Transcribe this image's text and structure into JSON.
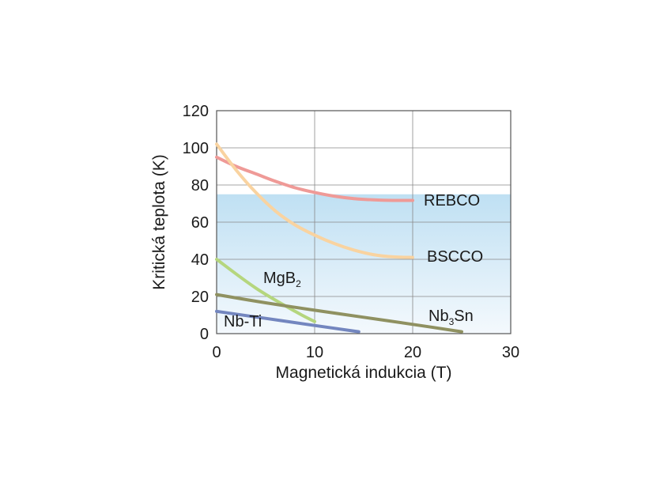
{
  "chart_data": {
    "type": "line",
    "xlabel": "Magnetická indukcia (T)",
    "ylabel": "Kritická teplota (K)",
    "xlim": [
      0,
      30
    ],
    "ylim": [
      0,
      120
    ],
    "x_ticks": [
      "0",
      "10",
      "20",
      "30"
    ],
    "y_ticks": [
      "0",
      "20",
      "40",
      "60",
      "80",
      "100",
      "120"
    ],
    "grid": true,
    "shaded_band": {
      "y_from": 0,
      "y_to": 75,
      "color": "#bfe0f3"
    },
    "series": [
      {
        "name": "REBCO",
        "label_main": "REBCO",
        "label_sub": "",
        "label_tail": "",
        "color": "#ef9a97",
        "points": [
          [
            0,
            95
          ],
          [
            2,
            90
          ],
          [
            4,
            86
          ],
          [
            6,
            82
          ],
          [
            8,
            78.5
          ],
          [
            10,
            76
          ],
          [
            12,
            74
          ],
          [
            14,
            72.7
          ],
          [
            16,
            72
          ],
          [
            18,
            71.7
          ],
          [
            20,
            71.7
          ]
        ]
      },
      {
        "name": "BSCCO",
        "label_main": "BSCCO",
        "label_sub": "",
        "label_tail": "",
        "color": "#f9d3a0",
        "points": [
          [
            0,
            102
          ],
          [
            2,
            88
          ],
          [
            4,
            76
          ],
          [
            6,
            66
          ],
          [
            8,
            58.5
          ],
          [
            10,
            53
          ],
          [
            12,
            48.5
          ],
          [
            14,
            45
          ],
          [
            16,
            42.5
          ],
          [
            18,
            41.3
          ],
          [
            20,
            41
          ]
        ]
      },
      {
        "name": "MgB2",
        "label_main": "MgB",
        "label_sub": "2",
        "label_tail": "",
        "color": "#b5d67e",
        "points": [
          [
            0,
            40
          ],
          [
            4,
            24.5
          ],
          [
            8,
            12
          ],
          [
            10,
            6.5
          ]
        ]
      },
      {
        "name": "Nb3Sn",
        "label_main": "Nb",
        "label_sub": "3",
        "label_tail": "Sn",
        "color": "#8f9161",
        "points": [
          [
            0,
            21
          ],
          [
            5,
            16.6
          ],
          [
            10,
            12.6
          ],
          [
            15,
            8.8
          ],
          [
            20,
            5
          ],
          [
            25,
            1
          ]
        ]
      },
      {
        "name": "Nb-Ti",
        "label_main": "Nb-Ti",
        "label_sub": "",
        "label_tail": "",
        "color": "#7386bf",
        "points": [
          [
            0,
            12
          ],
          [
            5,
            8.2
          ],
          [
            10,
            4.4
          ],
          [
            14.5,
            1
          ]
        ]
      }
    ]
  }
}
